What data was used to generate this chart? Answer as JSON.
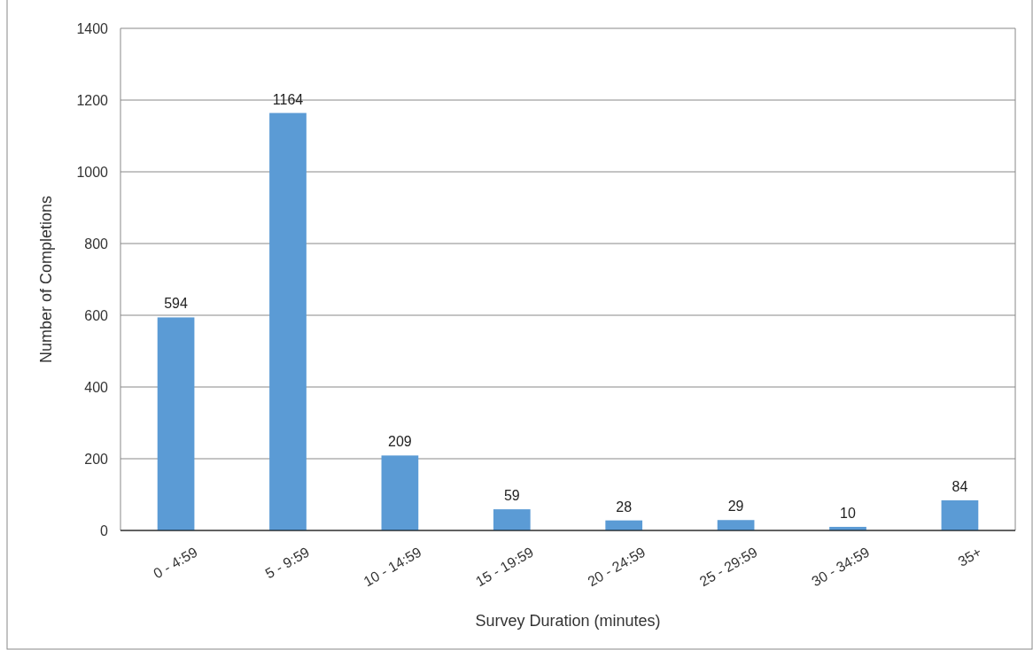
{
  "chart_data": {
    "type": "bar",
    "xlabel": "Survey Duration (minutes)",
    "ylabel": "Number of Completions",
    "categories": [
      "0 - 4:59",
      "5 - 9:59",
      "10 - 14:59",
      "15 - 19:59",
      "20 - 24:59",
      "25 - 29:59",
      "30 - 34:59",
      "35+"
    ],
    "values": [
      594,
      1164,
      209,
      59,
      28,
      29,
      10,
      84
    ],
    "color": "#5b9bd5",
    "ylim": [
      0,
      1400
    ],
    "yticks": [
      0,
      200,
      400,
      600,
      800,
      1000,
      1200,
      1400
    ],
    "grid": "y",
    "data_labels": true
  }
}
